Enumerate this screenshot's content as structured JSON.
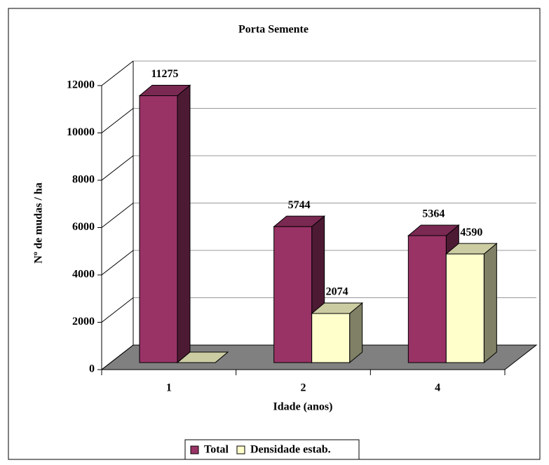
{
  "chart_data": {
    "type": "bar3d",
    "title": "Porta Semente",
    "x_label": "Idade (anos)",
    "y_label": "Nº de mudas / ha",
    "categories": [
      "1",
      "2",
      "4"
    ],
    "series": [
      {
        "name": "Total",
        "color": "#993366",
        "values": [
          11275,
          5744,
          5364
        ]
      },
      {
        "name": "Densidade estab.",
        "color": "#ffffcc",
        "values": [
          0,
          2074,
          4590
        ]
      }
    ],
    "ylim": [
      0,
      12000
    ],
    "yticks": [
      0,
      2000,
      4000,
      6000,
      8000,
      10000,
      12000
    ],
    "grid": true,
    "legend": "bottom"
  }
}
